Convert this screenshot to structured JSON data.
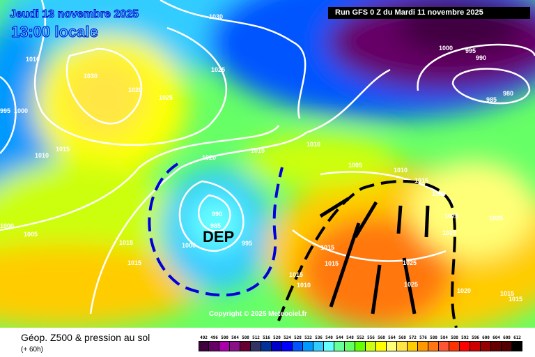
{
  "header": {
    "date": "Jeudi 13 novembre 2025",
    "time": "13:00 locale",
    "run": "Run GFS 0 Z du Mardi 11 novembre 2025"
  },
  "footer": {
    "title": "Géop. Z500 & pression au sol",
    "subtitle": "(+ 60h)"
  },
  "map": {
    "low_label": "DEP",
    "copyright": "Copyright © 2025 Meteociel.fr",
    "isobar_labels": [
      "1030",
      "1010",
      "1030",
      "1020",
      "1025",
      "1025",
      "995",
      "1000",
      "1010",
      "1015",
      "1020",
      "1015",
      "1010",
      "1005",
      "1010",
      "1015",
      "1020",
      "1000",
      "995",
      "990",
      "980",
      "985",
      "990",
      "985",
      "1000",
      "995",
      "1015",
      "1015",
      "1005",
      "1000",
      "1015",
      "1015",
      "1015",
      "1010",
      "1025",
      "1025",
      "1025",
      "1025",
      "1025",
      "1020",
      "1015",
      "1015"
    ]
  },
  "legend": {
    "labels": [
      "492",
      "496",
      "500",
      "504",
      "508",
      "512",
      "516",
      "520",
      "524",
      "528",
      "532",
      "536",
      "540",
      "544",
      "548",
      "552",
      "556",
      "560",
      "564",
      "568",
      "572",
      "576",
      "580",
      "584",
      "588",
      "592",
      "596",
      "600",
      "604",
      "608",
      "612"
    ],
    "colors": [
      "#400040",
      "#660066",
      "#aa00aa",
      "#881188",
      "#660033",
      "#333366",
      "#003399",
      "#0000cc",
      "#0000ff",
      "#0055ff",
      "#0099ff",
      "#33ccff",
      "#66ffff",
      "#66ff99",
      "#66ff66",
      "#66ff00",
      "#ccff11",
      "#ffff00",
      "#ffff77",
      "#ffe644",
      "#ffcc00",
      "#ff9900",
      "#ff7711",
      "#ff5533",
      "#ff3300",
      "#ff0000",
      "#cc0000",
      "#990000",
      "#660000",
      "#550000",
      "#000000"
    ]
  }
}
